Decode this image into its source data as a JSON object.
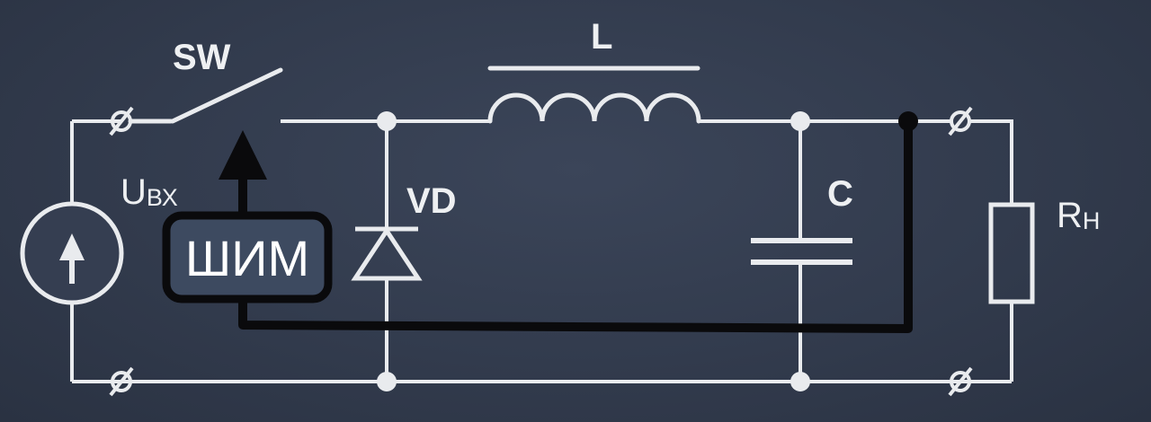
{
  "labels": {
    "switch": "SW",
    "inductor": "L",
    "input_voltage_main": "U",
    "input_voltage_sub": "ВХ",
    "diode": "VD",
    "capacitor": "C",
    "load_main": "R",
    "load_sub": "Н",
    "pwm": "ШИМ"
  },
  "colors": {
    "background": "#323b4d",
    "wire": "#e9ebee",
    "control": "#0a0a0c",
    "pwm_box": "#3d4a60"
  }
}
